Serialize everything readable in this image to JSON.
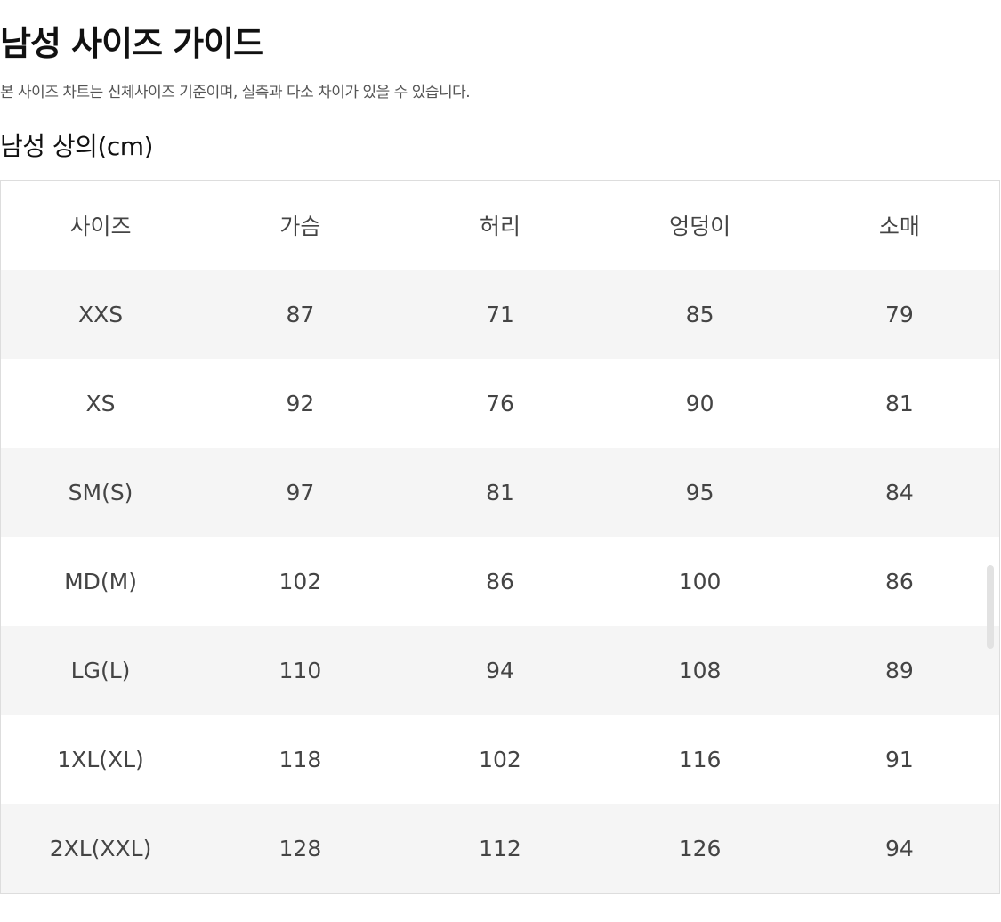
{
  "title": "남성 사이즈 가이드",
  "subtitle": "본 사이즈 차트는 신체사이즈 기준이며, 실측과 다소 차이가 있을 수 있습니다.",
  "section_title": "남성 상의(cm)",
  "table": {
    "headers": [
      "사이즈",
      "가슴",
      "허리",
      "엉덩이",
      "소매"
    ],
    "rows": [
      [
        "XXS",
        "87",
        "71",
        "85",
        "79"
      ],
      [
        "XS",
        "92",
        "76",
        "90",
        "81"
      ],
      [
        "SM(S)",
        "97",
        "81",
        "95",
        "84"
      ],
      [
        "MD(M)",
        "102",
        "86",
        "100",
        "86"
      ],
      [
        "LG(L)",
        "110",
        "94",
        "108",
        "89"
      ],
      [
        "1XL(XL)",
        "118",
        "102",
        "116",
        "91"
      ],
      [
        "2XL(XXL)",
        "128",
        "112",
        "126",
        "94"
      ]
    ]
  }
}
